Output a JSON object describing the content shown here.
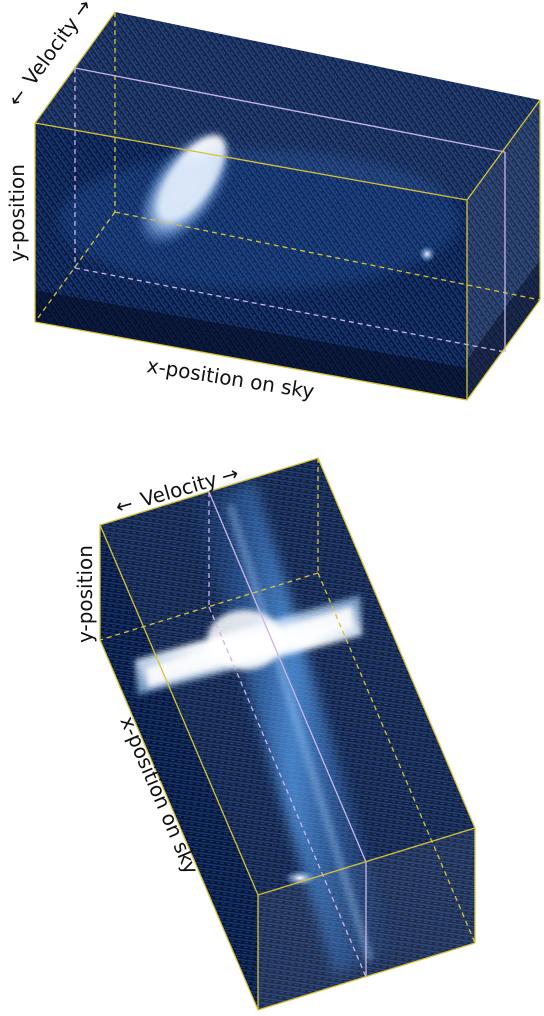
{
  "top_cube": {
    "velocity_label": "Velocity",
    "y_label": "y-position",
    "x_label": "x-position on sky"
  },
  "bottom_cube": {
    "velocity_label": "Velocity",
    "y_label": "y-position",
    "x_label": "x-position on sky"
  },
  "colors": {
    "edge_front": "#d8c23a",
    "edge_hidden": "#d8c23a",
    "edge_slice": "#c9b7e8",
    "background": "#ffffff"
  }
}
